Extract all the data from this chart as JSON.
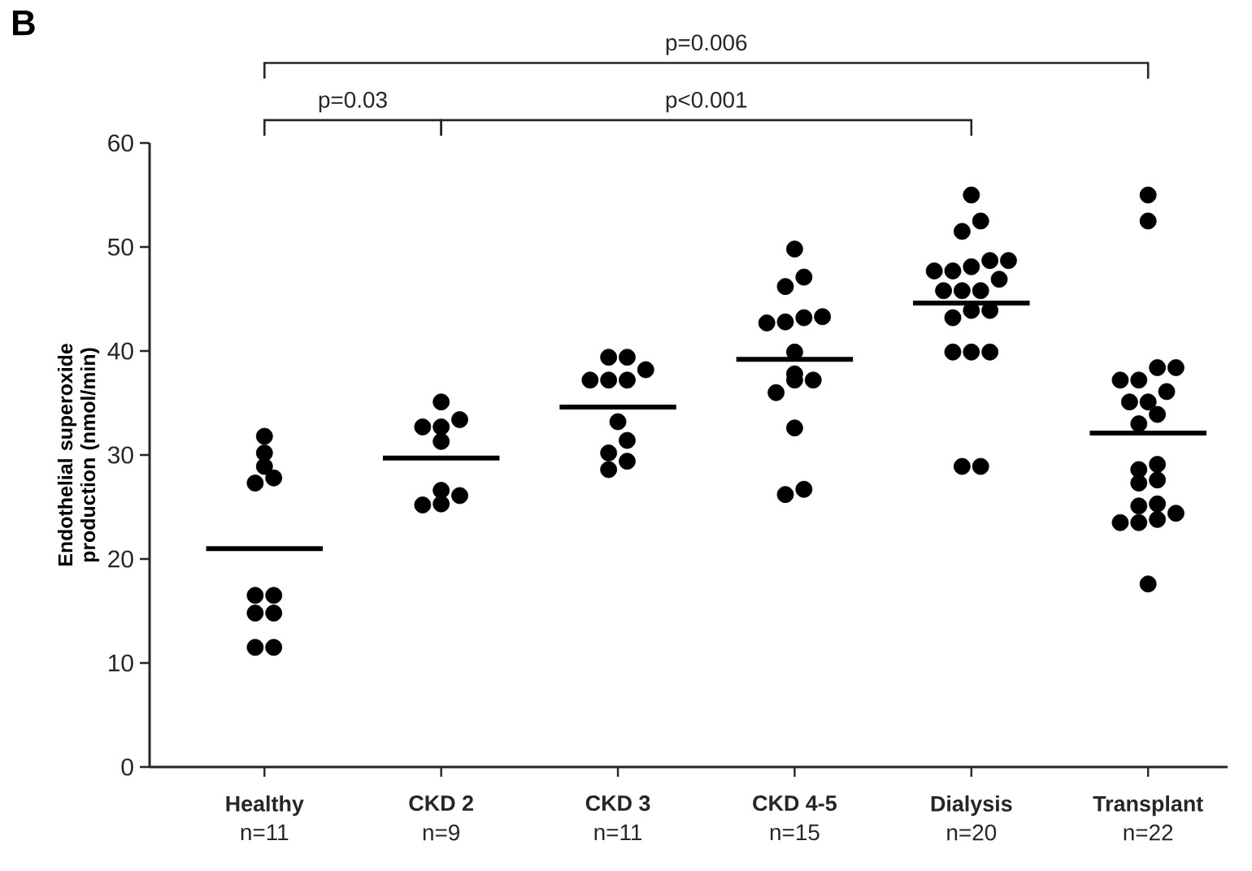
{
  "chart_data": {
    "type": "box",
    "title": "B",
    "ylabel": "Endothelial superoxide production (nmol/min)",
    "categories": [
      "Healthy",
      "CKD 2",
      "CKD 3",
      "CKD 4-5",
      "Dialysis",
      "Transplant"
    ],
    "ylim": [
      0,
      60
    ],
    "yticks": [
      0,
      10,
      20,
      30,
      40,
      50,
      60
    ],
    "series": [
      {
        "type": "scatter",
        "color": "#000000",
        "marker": "circle",
        "x": [
          "Healthy",
          "Healthy",
          "Healthy",
          "Healthy",
          "Healthy",
          "Healthy",
          "Healthy",
          "Healthy",
          "Healthy",
          "Healthy",
          "Healthy",
          "CKD 2",
          "CKD 2",
          "CKD 2",
          "CKD 2",
          "CKD 2",
          "CKD 2",
          "CKD 2",
          "CKD 2",
          "CKD 2",
          "CKD 3",
          "CKD 3",
          "CKD 3",
          "CKD 3",
          "CKD 3",
          "CKD 3",
          "CKD 3",
          "CKD 3",
          "CKD 3",
          "CKD 3",
          "CKD 3",
          "CKD 4-5",
          "CKD 4-5",
          "CKD 4-5",
          "CKD 4-5",
          "CKD 4-5",
          "CKD 4-5",
          "CKD 4-5",
          "CKD 4-5",
          "CKD 4-5",
          "CKD 4-5",
          "CKD 4-5",
          "CKD 4-5",
          "CKD 4-5",
          "CKD 4-5",
          "CKD 4-5",
          "Dialysis",
          "Dialysis",
          "Dialysis",
          "Dialysis",
          "Dialysis",
          "Dialysis",
          "Dialysis",
          "Dialysis",
          "Dialysis",
          "Dialysis",
          "Dialysis",
          "Dialysis",
          "Dialysis",
          "Dialysis",
          "Dialysis",
          "Dialysis",
          "Dialysis",
          "Dialysis",
          "Dialysis",
          "Dialysis",
          "Transplant",
          "Transplant",
          "Transplant",
          "Transplant",
          "Transplant",
          "Transplant",
          "Transplant",
          "Transplant",
          "Transplant",
          "Transplant",
          "Transplant",
          "Transplant",
          "Transplant",
          "Transplant",
          "Transplant",
          "Transplant",
          "Transplant",
          "Transplant",
          "Transplant",
          "Transplant",
          "Transplant",
          "Transplant"
        ],
        "values": [
          31.8,
          30.2,
          28.9,
          27.8,
          27.3,
          16.5,
          16.5,
          14.8,
          14.8,
          11.5,
          11.5,
          35.1,
          33.4,
          32.7,
          32.7,
          31.3,
          26.6,
          26.1,
          25.3,
          25.2,
          39.4,
          39.4,
          38.2,
          37.2,
          37.2,
          37.2,
          33.2,
          31.4,
          30.2,
          29.4,
          28.6,
          49.8,
          47.1,
          46.2,
          43.3,
          43.2,
          42.8,
          42.7,
          39.9,
          37.8,
          37.2,
          37.2,
          36.0,
          32.6,
          26.7,
          26.2,
          55.0,
          52.5,
          51.5,
          48.7,
          48.7,
          48.1,
          47.7,
          47.7,
          46.9,
          45.8,
          45.8,
          45.8,
          43.9,
          43.9,
          43.2,
          39.9,
          39.9,
          39.9,
          28.9,
          28.9,
          55.0,
          52.5,
          38.4,
          38.4,
          37.2,
          37.2,
          36.1,
          35.1,
          35.1,
          33.9,
          33.0,
          29.1,
          28.6,
          27.6,
          27.3,
          25.3,
          25.1,
          24.4,
          23.8,
          23.5,
          23.5,
          17.6
        ]
      },
      {
        "color": "#000000",
        "boxes": [
          {
            "low": 21.0,
            "q1": 21.0,
            "median": 21.0,
            "q3": 21.0,
            "high": 21.0
          },
          {
            "low": 29.7,
            "q1": 29.7,
            "median": 29.7,
            "q3": 29.7,
            "high": 29.7
          },
          {
            "low": 34.6,
            "q1": 34.6,
            "median": 34.6,
            "q3": 34.6,
            "high": 34.6
          },
          {
            "low": 39.2,
            "q1": 39.2,
            "median": 39.2,
            "q3": 39.2,
            "high": 39.2
          },
          {
            "low": 44.6,
            "q1": 44.6,
            "median": 44.6,
            "q3": 44.6,
            "high": 44.6
          },
          {
            "low": 32.1,
            "q1": 32.1,
            "median": 32.1,
            "q3": 32.1,
            "high": 32.1
          }
        ]
      }
    ],
    "annotations": [
      "p=0.03",
      "p<0.001",
      "p=0.006",
      "n=11",
      "n=9",
      "n=11",
      "n=15",
      "n=20",
      "n=22"
    ]
  }
}
